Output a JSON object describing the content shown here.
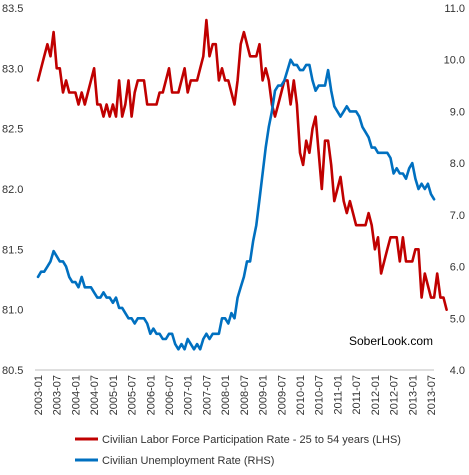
{
  "chart_data": {
    "type": "line",
    "title": "",
    "xlabel": "",
    "grid": false,
    "x_ticks": [
      "2003-01",
      "2003-07",
      "2004-01",
      "2004-07",
      "2005-01",
      "2005-07",
      "2006-01",
      "2006-07",
      "2007-01",
      "2007-07",
      "2008-01",
      "2008-07",
      "2009-01",
      "2009-07",
      "2010-01",
      "2010-07",
      "2011-01",
      "2011-07",
      "2012-01",
      "2012-07",
      "2013-01",
      "2013-07"
    ],
    "y_left": {
      "min": 80.5,
      "max": 83.5,
      "ticks": [
        "80.5",
        "81.0",
        "81.5",
        "82.0",
        "82.5",
        "83.0",
        "83.5"
      ]
    },
    "y_right": {
      "min": 4.0,
      "max": 11.0,
      "ticks": [
        "4.0",
        "5.0",
        "6.0",
        "7.0",
        "8.0",
        "9.0",
        "10.0",
        "11.0"
      ]
    },
    "annotation": "SoberLook.com",
    "legend_position": "bottom",
    "series": [
      {
        "name": "Civilian Labor Force Participation Rate - 25 to 54 years (LHS)",
        "axis": "left",
        "color": "#c00000",
        "start": "2003-01",
        "values": [
          82.9,
          83.0,
          83.1,
          83.2,
          83.1,
          83.3,
          83.0,
          83.0,
          82.8,
          82.9,
          82.8,
          82.8,
          82.8,
          82.7,
          82.8,
          82.7,
          82.8,
          82.9,
          83.0,
          82.7,
          82.7,
          82.6,
          82.7,
          82.6,
          82.7,
          82.6,
          82.9,
          82.6,
          82.7,
          82.9,
          82.6,
          82.8,
          82.9,
          82.9,
          82.9,
          82.7,
          82.7,
          82.7,
          82.7,
          82.8,
          82.8,
          82.9,
          83.0,
          82.8,
          82.8,
          82.8,
          82.9,
          83.0,
          82.8,
          82.9,
          82.9,
          82.9,
          83.0,
          83.1,
          83.4,
          83.1,
          83.2,
          83.2,
          82.9,
          83.0,
          82.9,
          82.9,
          82.8,
          82.7,
          82.9,
          83.2,
          83.3,
          83.2,
          83.1,
          83.1,
          83.1,
          83.2,
          82.9,
          83.0,
          82.9,
          82.7,
          82.6,
          82.7,
          82.8,
          82.9,
          82.9,
          82.7,
          82.9,
          82.7,
          82.3,
          82.2,
          82.4,
          82.3,
          82.5,
          82.6,
          82.3,
          82.0,
          82.4,
          82.4,
          82.2,
          81.9,
          82.0,
          82.1,
          81.9,
          81.8,
          81.9,
          81.8,
          81.7,
          81.7,
          81.7,
          81.7,
          81.8,
          81.7,
          81.5,
          81.6,
          81.3,
          81.4,
          81.5,
          81.6,
          81.6,
          81.6,
          81.4,
          81.6,
          81.4,
          81.4,
          81.4,
          81.5,
          81.5,
          81.1,
          81.3,
          81.2,
          81.1,
          81.1,
          81.3,
          81.1,
          81.1,
          81.0
        ]
      },
      {
        "name": "Civilian Unemployment Rate (RHS)",
        "axis": "right",
        "color": "#0070c0",
        "start": "2003-01",
        "values": [
          5.8,
          5.9,
          5.9,
          6.0,
          6.1,
          6.3,
          6.2,
          6.1,
          6.1,
          6.0,
          5.8,
          5.7,
          5.7,
          5.6,
          5.8,
          5.6,
          5.6,
          5.6,
          5.5,
          5.4,
          5.4,
          5.5,
          5.4,
          5.4,
          5.3,
          5.4,
          5.2,
          5.2,
          5.1,
          5.0,
          5.0,
          4.9,
          5.0,
          5.0,
          5.0,
          4.9,
          4.7,
          4.8,
          4.7,
          4.7,
          4.6,
          4.6,
          4.7,
          4.7,
          4.5,
          4.4,
          4.5,
          4.4,
          4.6,
          4.5,
          4.4,
          4.5,
          4.4,
          4.6,
          4.7,
          4.6,
          4.7,
          4.7,
          4.7,
          5.0,
          5.0,
          4.9,
          5.1,
          5.0,
          5.4,
          5.6,
          5.8,
          6.1,
          6.1,
          6.5,
          6.8,
          7.3,
          7.8,
          8.3,
          8.7,
          9.0,
          9.4,
          9.5,
          9.5,
          9.6,
          9.8,
          10.0,
          9.9,
          9.9,
          9.8,
          9.8,
          9.9,
          9.9,
          9.6,
          9.4,
          9.5,
          9.5,
          9.5,
          9.8,
          9.4,
          9.1,
          9.0,
          8.9,
          9.0,
          9.1,
          9.0,
          9.0,
          9.0,
          8.9,
          8.7,
          8.6,
          8.5,
          8.3,
          8.3,
          8.2,
          8.2,
          8.2,
          8.2,
          8.1,
          7.8,
          7.9,
          7.8,
          7.8,
          7.7,
          7.9,
          8.0,
          7.7,
          7.5,
          7.6,
          7.5,
          7.6,
          7.4,
          7.3
        ]
      }
    ]
  }
}
